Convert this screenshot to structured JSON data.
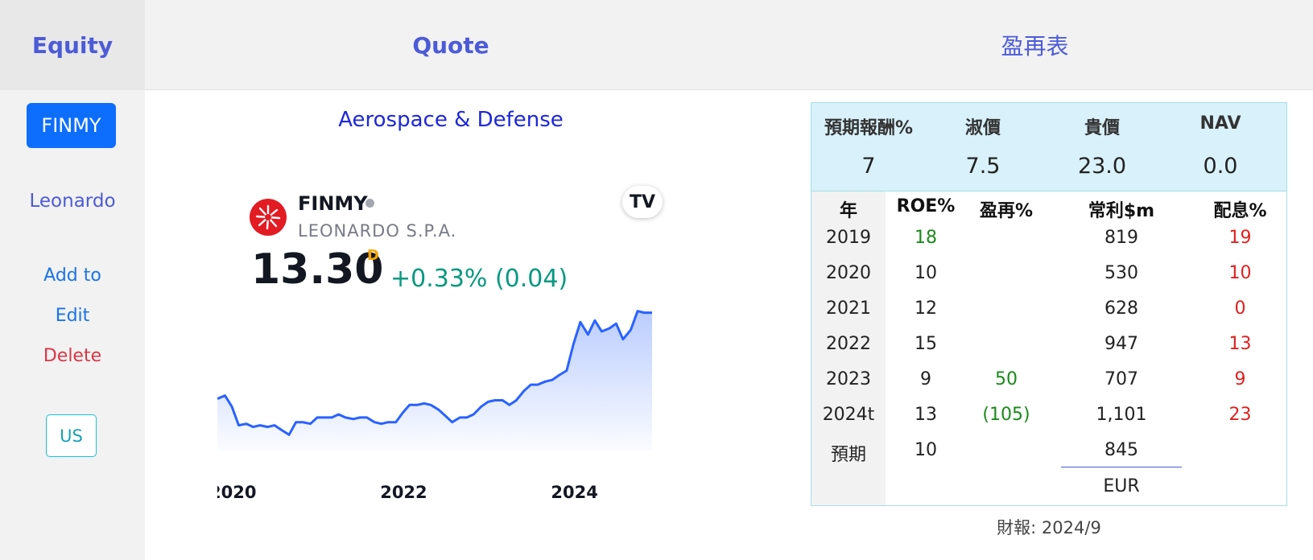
{
  "header": {
    "equity": "Equity",
    "quote": "Quote",
    "pe_table": "盈再表"
  },
  "sidebar": {
    "symbol": "FINMY",
    "company": "Leonardo",
    "add": "Add to",
    "edit": "Edit",
    "delete": "Delete",
    "market": "US"
  },
  "quote": {
    "sector": "Aerospace & Defense",
    "symbol": "FINMY",
    "company_full": "LEONARDO S.P.A.",
    "price": "13.30",
    "price_flag": "D",
    "change": "+0.33% (0.04)",
    "tv_badge": "TV"
  },
  "chart_data": {
    "type": "area",
    "x": [
      2019.83,
      2019.92,
      2020.0,
      2020.08,
      2020.17,
      2020.25,
      2020.33,
      2020.42,
      2020.5,
      2020.58,
      2020.67,
      2020.75,
      2020.83,
      2020.92,
      2021.0,
      2021.08,
      2021.17,
      2021.25,
      2021.33,
      2021.42,
      2021.5,
      2021.58,
      2021.67,
      2021.75,
      2021.83,
      2021.92,
      2022.0,
      2022.08,
      2022.17,
      2022.25,
      2022.33,
      2022.42,
      2022.5,
      2022.58,
      2022.67,
      2022.75,
      2022.83,
      2022.92,
      2023.0,
      2023.08,
      2023.17,
      2023.25,
      2023.33,
      2023.42,
      2023.5,
      2023.58,
      2023.67,
      2023.75,
      2023.83,
      2023.92,
      2024.0,
      2024.08,
      2024.17,
      2024.25,
      2024.33,
      2024.42,
      2024.5,
      2024.58,
      2024.67,
      2024.75,
      2024.83,
      2024.92
    ],
    "values": [
      7.3,
      7.5,
      6.8,
      5.6,
      5.7,
      5.5,
      5.6,
      5.5,
      5.6,
      5.3,
      5.0,
      5.8,
      5.8,
      5.7,
      6.1,
      6.1,
      6.1,
      6.3,
      6.1,
      6.0,
      6.1,
      6.1,
      5.8,
      5.7,
      5.8,
      5.8,
      6.4,
      6.9,
      6.9,
      7.0,
      6.9,
      6.6,
      6.2,
      5.8,
      6.1,
      6.1,
      6.3,
      6.8,
      7.1,
      7.2,
      7.2,
      6.9,
      7.2,
      7.8,
      8.2,
      8.2,
      8.4,
      8.5,
      8.8,
      9.1,
      10.8,
      12.2,
      11.4,
      12.3,
      11.6,
      11.8,
      12.1,
      11.1,
      11.7,
      12.9,
      12.8,
      12.8
    ],
    "x_ticks": [
      "2020",
      "2022",
      "2024"
    ],
    "xlim": [
      2019.83,
      2024.92
    ],
    "ylim": [
      4.5,
      13.5
    ],
    "grid": false,
    "legend": false
  },
  "summary": {
    "headers": [
      "預期報酬%",
      "淑價",
      "貴價",
      "NAV"
    ],
    "values": [
      "7",
      "7.5",
      "23.0",
      "0.0"
    ]
  },
  "table": {
    "headers": [
      "年",
      "ROE%",
      "盈再%",
      "常利$m",
      "配息%"
    ],
    "rows": [
      {
        "year": "2019",
        "roe": "18",
        "reinvest": "",
        "profit": "819",
        "payout": "19"
      },
      {
        "year": "2020",
        "roe": "10",
        "reinvest": "",
        "profit": "530",
        "payout": "10"
      },
      {
        "year": "2021",
        "roe": "12",
        "reinvest": "",
        "profit": "628",
        "payout": "0"
      },
      {
        "year": "2022",
        "roe": "15",
        "reinvest": "",
        "profit": "947",
        "payout": "13"
      },
      {
        "year": "2023",
        "roe": "9",
        "reinvest": "50",
        "profit": "707",
        "payout": "9"
      },
      {
        "year": "2024t",
        "roe": "13",
        "reinvest": "(105)",
        "profit": "1,101",
        "payout": "23"
      },
      {
        "year": "預期",
        "roe": "10",
        "reinvest": "",
        "profit": "845",
        "payout": ""
      }
    ],
    "currency": "EUR"
  },
  "report": "財報: 2024/9",
  "colors": {
    "accent": "#4c5bd8",
    "green": "#1a8a1a",
    "red": "#e02020",
    "line": "#2962ff"
  }
}
